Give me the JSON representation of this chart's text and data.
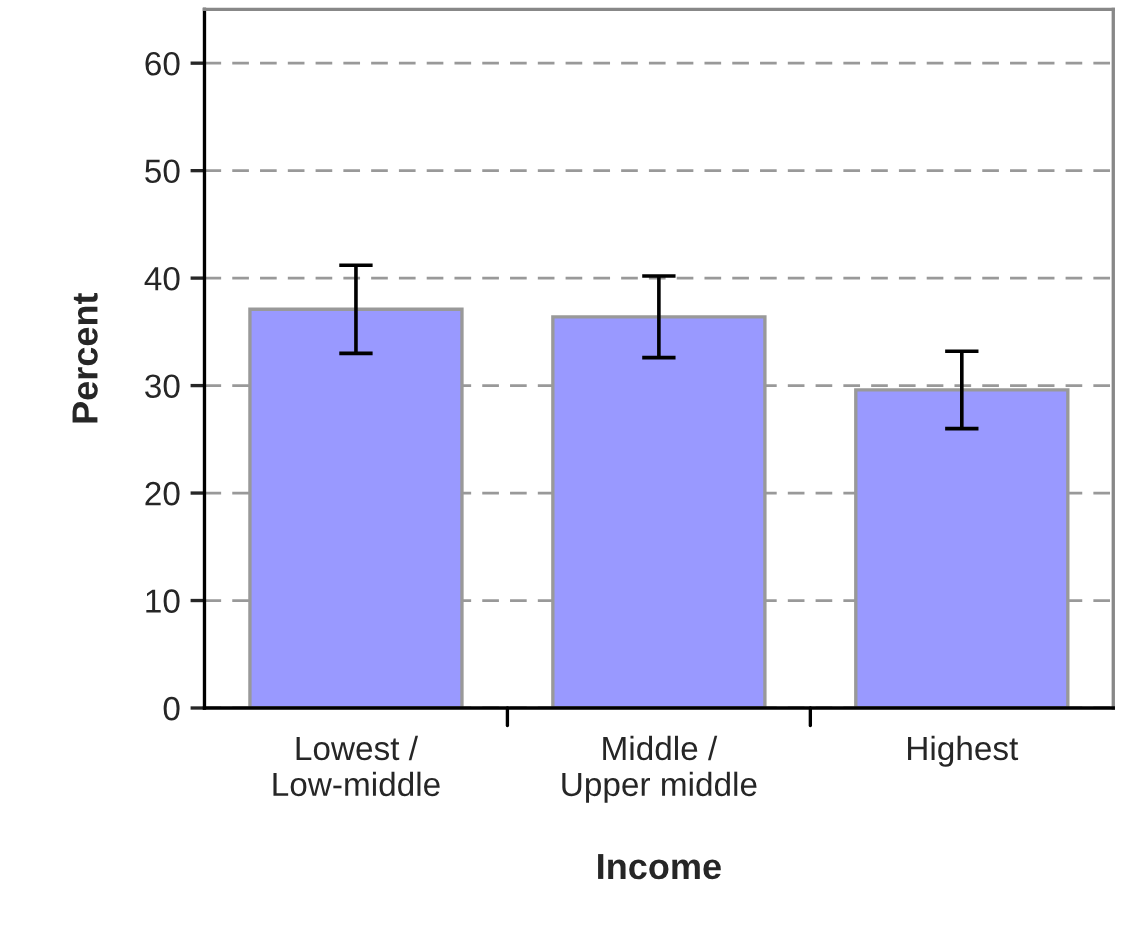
{
  "chart_data": {
    "type": "bar",
    "xlabel": "Income",
    "ylabel": "Percent",
    "categories": [
      "Lowest /\nLow-middle",
      "Middle /\nUpper middle",
      "Highest"
    ],
    "values": [
      37.1,
      36.4,
      29.6
    ],
    "errors": [
      4.1,
      3.8,
      3.6
    ],
    "color": "#9999ff",
    "ylim": [
      0,
      65
    ],
    "yticks": [
      0,
      10,
      20,
      30,
      40,
      50,
      60
    ],
    "grid": "y"
  }
}
